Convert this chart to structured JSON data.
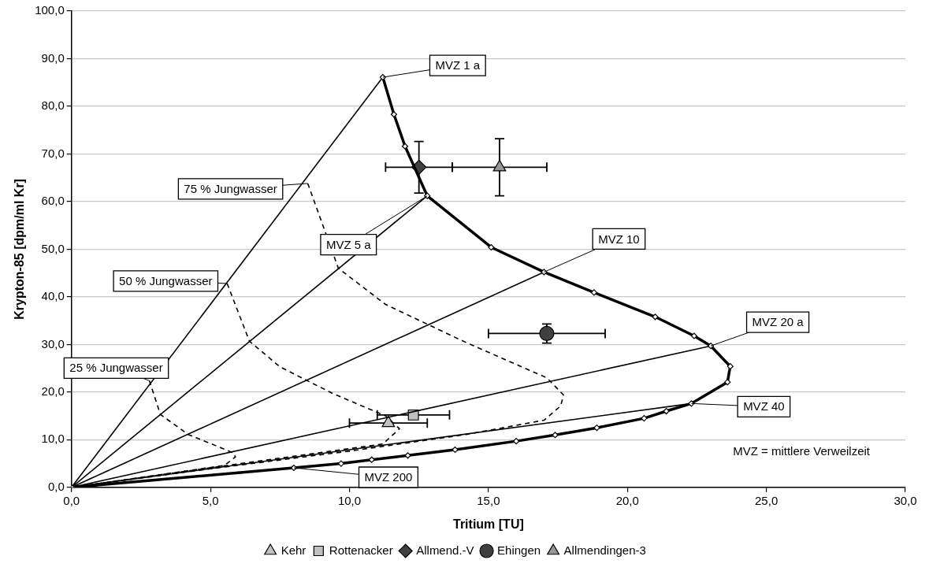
{
  "chart_data": {
    "type": "scatter",
    "xlabel": "Tritium [TU]",
    "ylabel": "Krypton-85 [dpm/ml Kr]",
    "xlim": [
      0,
      30
    ],
    "ylim": [
      0,
      100
    ],
    "xticks": [
      {
        "value": 0,
        "label": "0,0"
      },
      {
        "value": 5,
        "label": "5,0"
      },
      {
        "value": 10,
        "label": "10,0"
      },
      {
        "value": 15,
        "label": "15,0"
      },
      {
        "value": 20,
        "label": "20,0"
      },
      {
        "value": 25,
        "label": "25,0"
      },
      {
        "value": 30,
        "label": "30,0"
      }
    ],
    "yticks": [
      {
        "value": 0,
        "label": "0,0"
      },
      {
        "value": 10,
        "label": "10,0"
      },
      {
        "value": 20,
        "label": "20,0"
      },
      {
        "value": 30,
        "label": "30,0"
      },
      {
        "value": 40,
        "label": "40,0"
      },
      {
        "value": 50,
        "label": "50,0"
      },
      {
        "value": 60,
        "label": "60,0"
      },
      {
        "value": 70,
        "label": "70,0"
      },
      {
        "value": 80,
        "label": "80,0"
      },
      {
        "value": 90,
        "label": "90,0"
      },
      {
        "value": 100,
        "label": "100,0"
      }
    ],
    "grid": "y",
    "legend": "bottom",
    "series": [
      {
        "type": "line",
        "color": "#000000",
        "marker": "diamond",
        "x": [
          11.2,
          11.6,
          12.0,
          12.8,
          15.1,
          17.0,
          18.8,
          21.0,
          22.4,
          23.0,
          23.7,
          23.6,
          22.3,
          21.4,
          20.6,
          18.9,
          17.4,
          16.0,
          13.8,
          12.1,
          10.8,
          9.7,
          8.0,
          0
        ],
        "values": [
          86.1,
          78.3,
          71.6,
          61.2,
          50.4,
          45.2,
          40.9,
          35.8,
          31.8,
          29.7,
          25.4,
          22.1,
          17.6,
          16.0,
          14.5,
          12.5,
          11.0,
          9.7,
          7.9,
          6.7,
          5.8,
          5.0,
          4.1,
          0
        ]
      },
      {
        "type": "line",
        "color": "#000000",
        "marker": "none",
        "x": [
          0,
          11.2
        ],
        "values": [
          0,
          86.1
        ]
      },
      {
        "type": "line",
        "color": "#000000",
        "marker": "none",
        "x": [
          0,
          12.8
        ],
        "values": [
          0,
          61.2
        ]
      },
      {
        "type": "line",
        "color": "#000000",
        "marker": "none",
        "x": [
          0,
          17.0
        ],
        "values": [
          0,
          45.2
        ]
      },
      {
        "type": "line",
        "color": "#000000",
        "marker": "none",
        "x": [
          0,
          23.0
        ],
        "values": [
          0,
          29.7
        ]
      },
      {
        "type": "line",
        "color": "#000000",
        "marker": "none",
        "x": [
          0,
          22.3
        ],
        "values": [
          0,
          17.6
        ]
      },
      {
        "type": "line",
        "color": "#000000",
        "marker": "none",
        "line_style": "dashed",
        "x": [
          8.5,
          9.6,
          11.3,
          14.2,
          17.1,
          17.7,
          17.6,
          17.0,
          14.2,
          10.0,
          5.0,
          0
        ],
        "values": [
          63.8,
          46.0,
          38.4,
          30.4,
          23.0,
          19.4,
          17.1,
          14.1,
          11.1,
          7.6,
          3.9,
          0
        ]
      },
      {
        "type": "line",
        "color": "#000000",
        "marker": "none",
        "line_style": "dashed",
        "x": [
          5.6,
          6.4,
          7.5,
          9.4,
          11.3,
          11.8,
          11.2,
          5.6,
          0
        ],
        "values": [
          42.8,
          30.7,
          25.3,
          19.7,
          15.0,
          12.3,
          9.1,
          4.6,
          0
        ]
      },
      {
        "type": "line",
        "color": "#000000",
        "marker": "none",
        "line_style": "dashed",
        "x": [
          2.8,
          3.2,
          4.2,
          5.8,
          5.9,
          5.5,
          0
        ],
        "values": [
          22.4,
          15.3,
          11.1,
          7.3,
          6.4,
          4.6,
          0
        ]
      },
      {
        "name": "Kehr",
        "type": "scatter",
        "color": "#c0c0c0",
        "marker": "triangle",
        "x": [
          11.4
        ],
        "values": [
          13.5
        ],
        "xerrors": [
          1.4
        ]
      },
      {
        "name": "Rottenacker",
        "type": "scatter",
        "color": "#c0c0c0",
        "marker": "square",
        "x": [
          12.3
        ],
        "values": [
          15.2
        ],
        "xerrors": [
          1.3
        ]
      },
      {
        "name": "Allmend.-V",
        "type": "scatter",
        "color": "#404040",
        "marker": "diamond",
        "x": [
          12.5
        ],
        "values": [
          67.2
        ],
        "xerrors": [
          1.2
        ],
        "errors": [
          5.4
        ]
      },
      {
        "name": "Ehingen",
        "type": "scatter",
        "color": "#404040",
        "marker": "circle",
        "x": [
          17.1
        ],
        "values": [
          32.3
        ],
        "xerrors": [
          2.1
        ],
        "errors": [
          2.0
        ]
      },
      {
        "name": "Allmendingen-3",
        "type": "scatter",
        "color": "#969696",
        "marker": "triangle",
        "x": [
          15.4
        ],
        "values": [
          67.2
        ],
        "xerrors": [
          1.7
        ],
        "errors": [
          6.0
        ]
      }
    ],
    "annotations": [
      {
        "text": "MVZ 1 a",
        "x": 11.2,
        "y": 86.1
      },
      {
        "text": "MVZ 5 a",
        "x": 12.8,
        "y": 61.2
      },
      {
        "text": "MVZ 10",
        "x": 17.0,
        "y": 45.2
      },
      {
        "text": "MVZ 20 a",
        "x": 23.0,
        "y": 29.7
      },
      {
        "text": "MVZ 40",
        "x": 22.3,
        "y": 17.6
      },
      {
        "text": "MVZ 200",
        "x": 8.0,
        "y": 4.1
      },
      {
        "text": "75 % Jungwasser",
        "x": 8.5,
        "y": 63.8
      },
      {
        "text": "50 % Jungwasser",
        "x": 5.6,
        "y": 42.8
      },
      {
        "text": "25 % Jungwasser",
        "x": 2.8,
        "y": 22.4
      },
      "MVZ = mittlere Verweilzeit"
    ]
  }
}
